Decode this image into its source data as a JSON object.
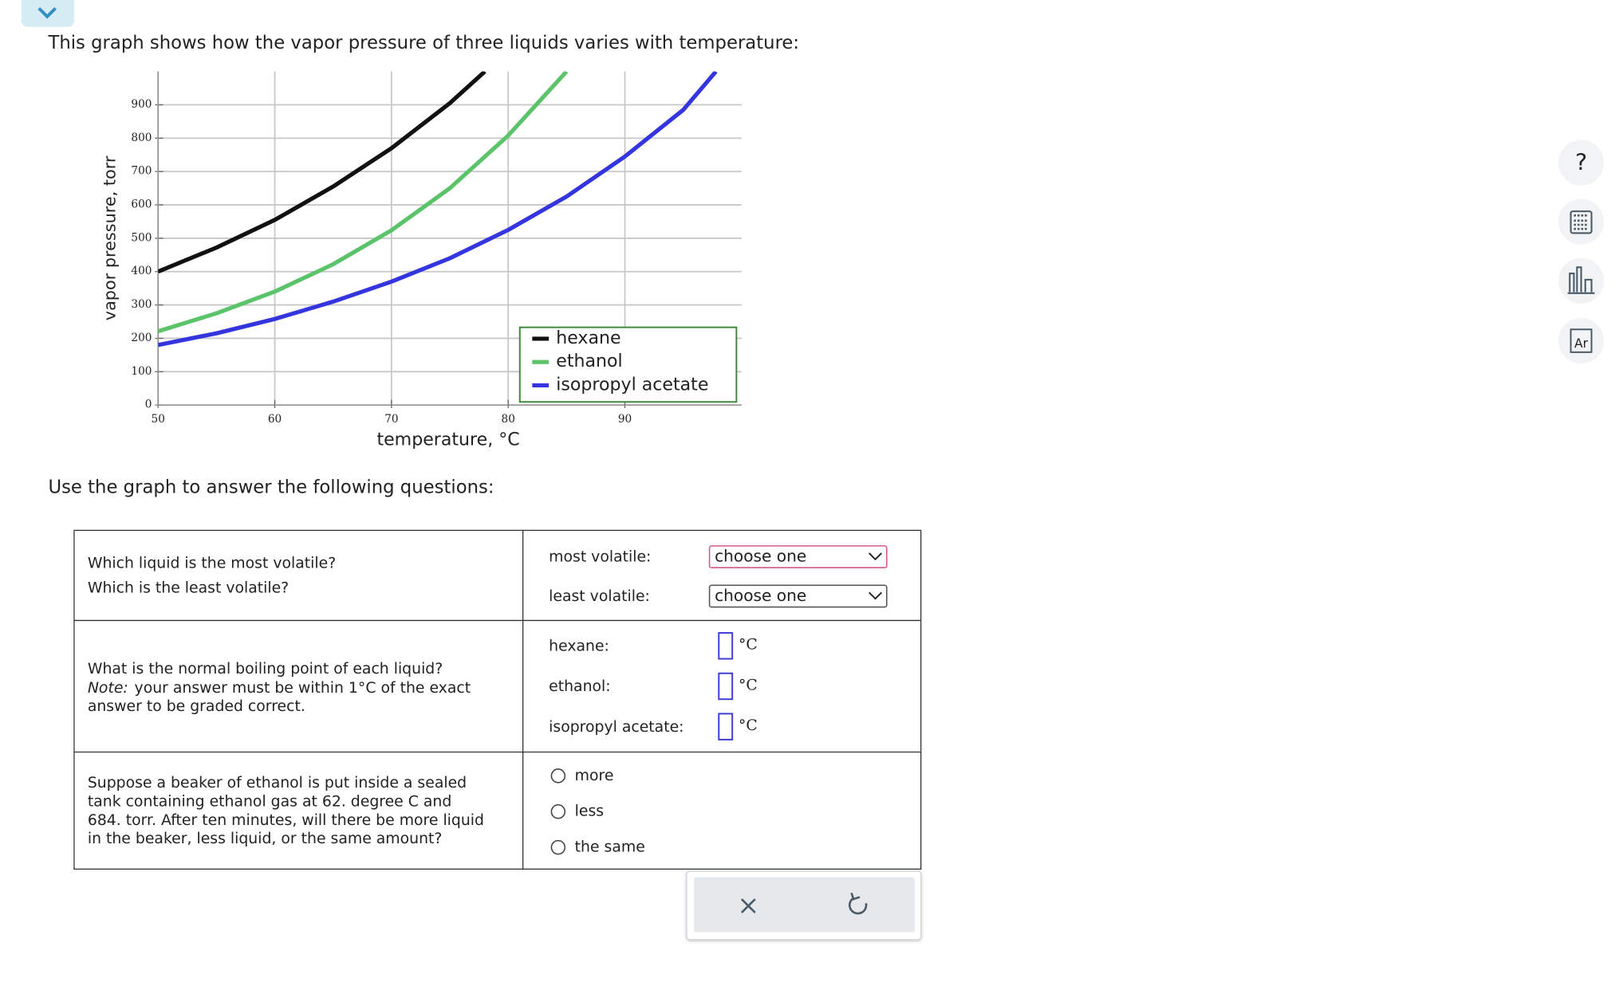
{
  "header": {
    "intro": "This graph shows how the vapor pressure of three liquids varies with temperature:"
  },
  "chart_data": {
    "type": "line",
    "xlabel": "temperature,  °C",
    "ylabel": "vapor pressure, torr",
    "xlim": [
      50,
      100
    ],
    "ylim": [
      0,
      1000
    ],
    "xticks": [
      50,
      60,
      70,
      80,
      90
    ],
    "yticks": [
      0,
      100,
      200,
      300,
      400,
      500,
      600,
      700,
      800,
      900
    ],
    "grid": true,
    "legend": "lower right",
    "series": [
      {
        "name": "hexane",
        "color": "#111111",
        "x": [
          50,
          55,
          60,
          65,
          70,
          75,
          78
        ],
        "values": [
          400,
          472,
          555,
          655,
          770,
          905,
          1000
        ]
      },
      {
        "name": "ethanol",
        "color": "#5bc46a",
        "x": [
          50,
          55,
          60,
          65,
          70,
          75,
          80,
          85
        ],
        "values": [
          221,
          275,
          340,
          422,
          524,
          650,
          808,
          1000
        ]
      },
      {
        "name": "isopropyl acetate",
        "color": "#3535e0",
        "x": [
          50,
          55,
          60,
          65,
          70,
          75,
          80,
          85,
          90,
          95,
          97.8
        ],
        "values": [
          180,
          215,
          258,
          310,
          370,
          440,
          525,
          625,
          745,
          885,
          1000
        ]
      }
    ]
  },
  "instructions": "Use the graph to answer the following questions:",
  "questions": [
    {
      "prompt": [
        "Which liquid is the most volatile?",
        "Which is the least volatile?"
      ],
      "fields": [
        {
          "label": "most volatile:",
          "select": "choose one"
        },
        {
          "label": "least volatile:",
          "select": "choose one"
        }
      ]
    },
    {
      "prompt": [
        "What is the normal boiling point of each liquid?"
      ],
      "note_label": "Note:",
      "note": [
        "your answer must be within 1°C of the exact",
        "answer to be graded correct."
      ],
      "fields": [
        {
          "label": "hexane:",
          "unit": "°C"
        },
        {
          "label": "ethanol:",
          "unit": "°C"
        },
        {
          "label": "isopropyl acetate:",
          "unit": "°C"
        }
      ]
    },
    {
      "prompt": [
        "Suppose a beaker of ethanol is put inside a sealed",
        "tank containing ethanol gas at 62. degree C and",
        "684. torr. After ten minutes, will there be more liquid",
        "in the beaker, less liquid, or the same amount?"
      ],
      "options": [
        "more",
        "less",
        "the same"
      ]
    }
  ],
  "tools": {
    "help": "?",
    "periodic": "Ar"
  }
}
